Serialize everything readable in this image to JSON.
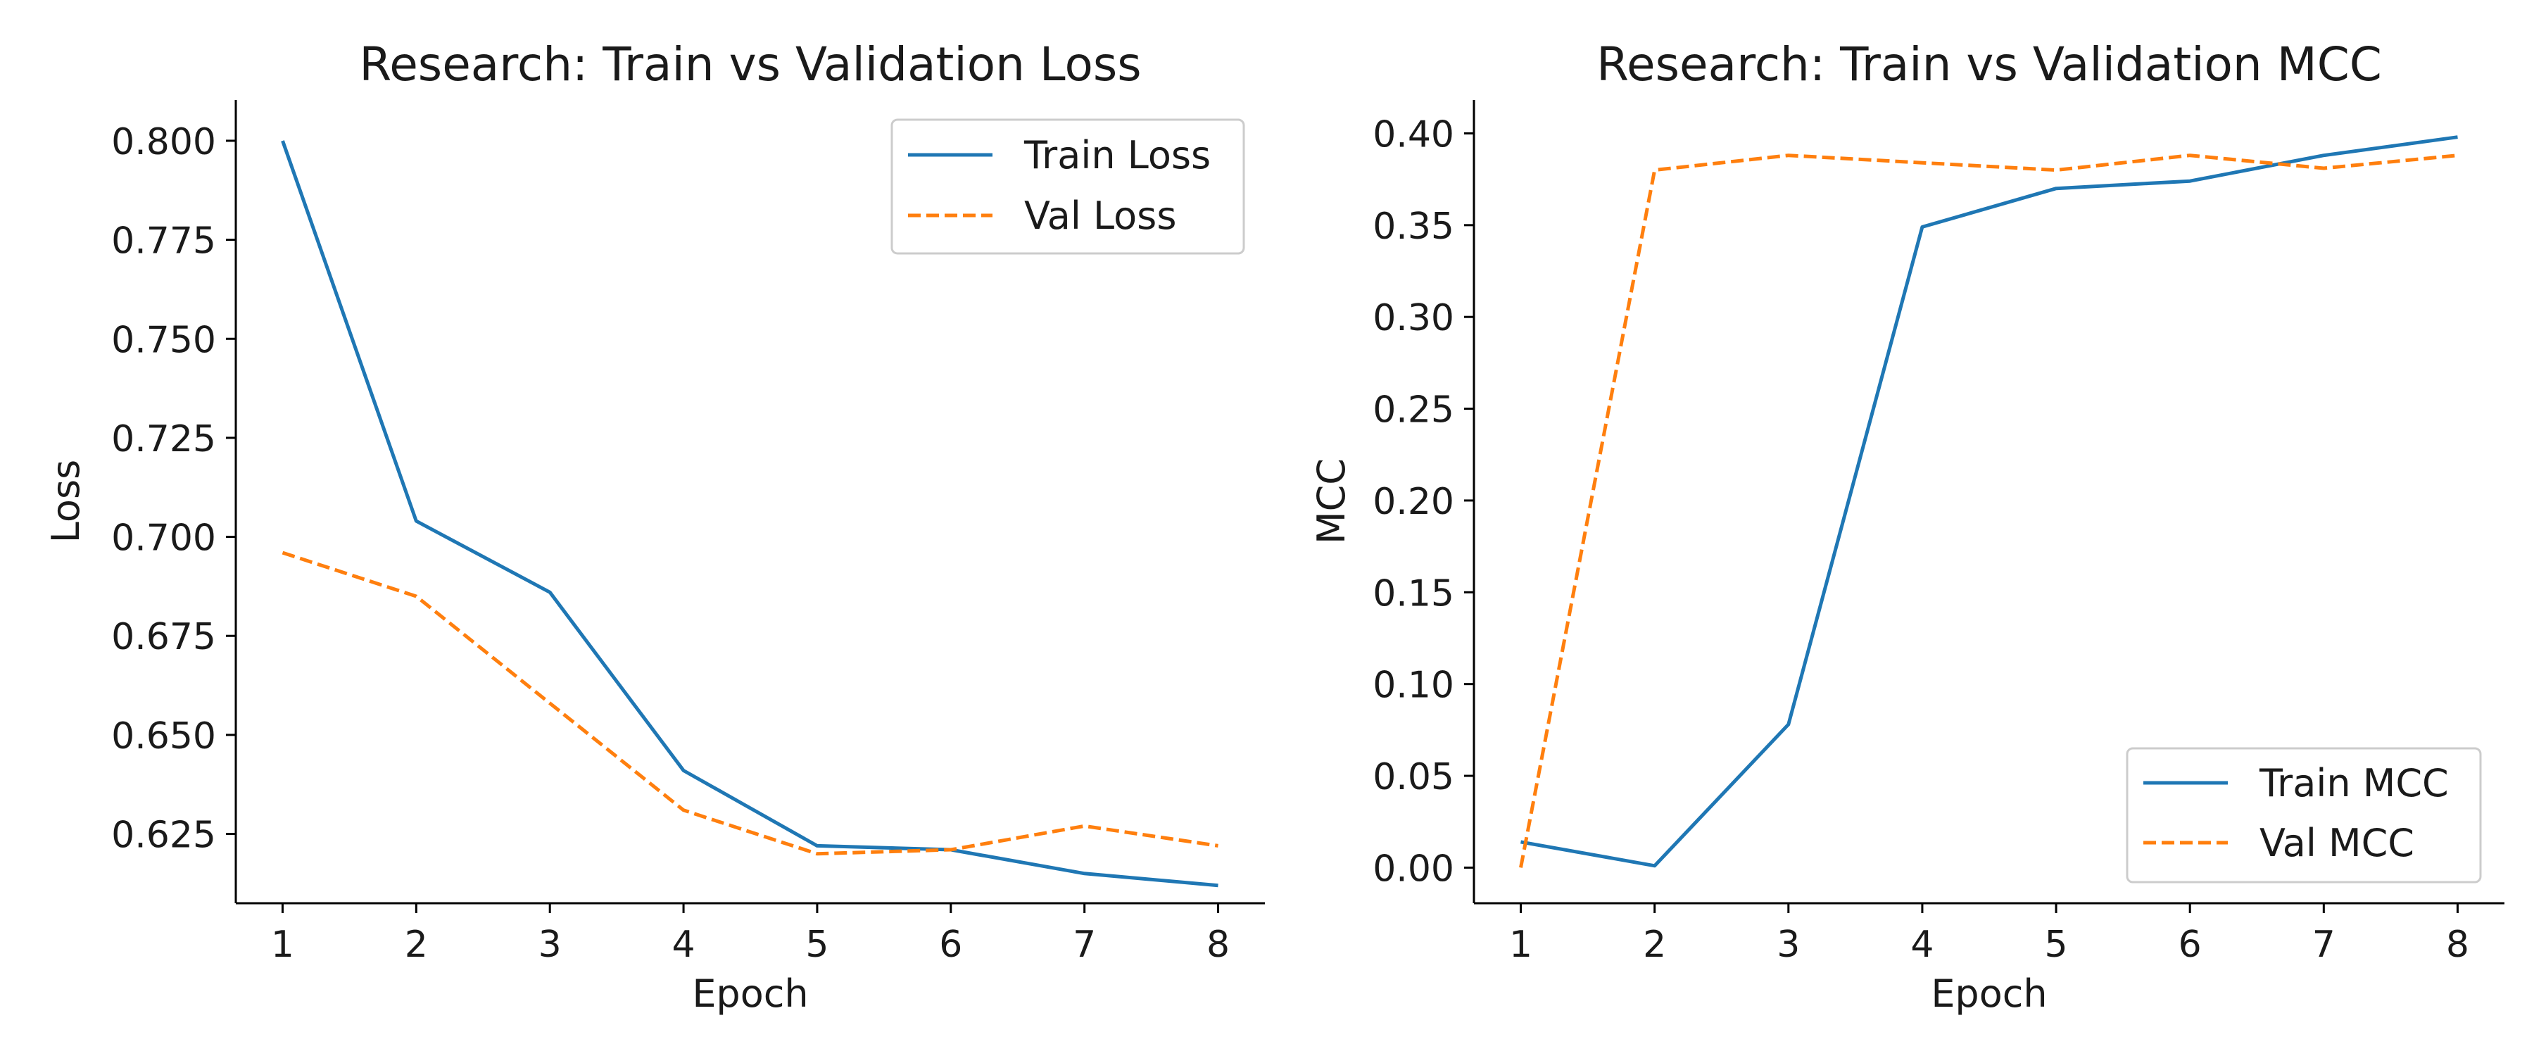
{
  "chart_data": [
    {
      "type": "line",
      "title": "Research: Train vs Validation Loss",
      "xlabel": "Epoch",
      "ylabel": "Loss",
      "x": [
        1,
        2,
        3,
        4,
        5,
        6,
        7,
        8
      ],
      "xticks": [
        "1",
        "2",
        "3",
        "4",
        "5",
        "6",
        "7",
        "8"
      ],
      "xlim": [
        0.65,
        8.35
      ],
      "ylim": [
        0.6075,
        0.8103
      ],
      "yticks": [
        "0.625",
        "0.650",
        "0.675",
        "0.700",
        "0.725",
        "0.750",
        "0.775",
        "0.800"
      ],
      "grid": false,
      "legend_position": "top-right",
      "series": [
        {
          "name": "Train Loss",
          "color": "#1f77b4",
          "style": "solid",
          "values": [
            0.8,
            0.704,
            0.686,
            0.641,
            0.622,
            0.621,
            0.615,
            0.612
          ]
        },
        {
          "name": "Val Loss",
          "color": "#ff7f0e",
          "style": "dashed",
          "values": [
            0.696,
            0.685,
            0.658,
            0.631,
            0.62,
            0.621,
            0.627,
            0.622
          ]
        }
      ]
    },
    {
      "type": "line",
      "title": "Research: Train vs Validation MCC",
      "xlabel": "Epoch",
      "ylabel": "MCC",
      "x": [
        1,
        2,
        3,
        4,
        5,
        6,
        7,
        8
      ],
      "xticks": [
        "1",
        "2",
        "3",
        "4",
        "5",
        "6",
        "7",
        "8"
      ],
      "xlim": [
        0.65,
        8.35
      ],
      "ylim": [
        -0.0194,
        0.4182
      ],
      "yticks": [
        "0.00",
        "0.05",
        "0.10",
        "0.15",
        "0.20",
        "0.25",
        "0.30",
        "0.35",
        "0.40"
      ],
      "grid": false,
      "legend_position": "bottom-right",
      "series": [
        {
          "name": "Train MCC",
          "color": "#1f77b4",
          "style": "solid",
          "values": [
            0.014,
            0.001,
            0.078,
            0.349,
            0.37,
            0.374,
            0.388,
            0.398
          ]
        },
        {
          "name": "Val MCC",
          "color": "#ff7f0e",
          "style": "dashed",
          "values": [
            0.0,
            0.38,
            0.388,
            0.384,
            0.38,
            0.388,
            0.381,
            0.388
          ]
        }
      ]
    }
  ]
}
